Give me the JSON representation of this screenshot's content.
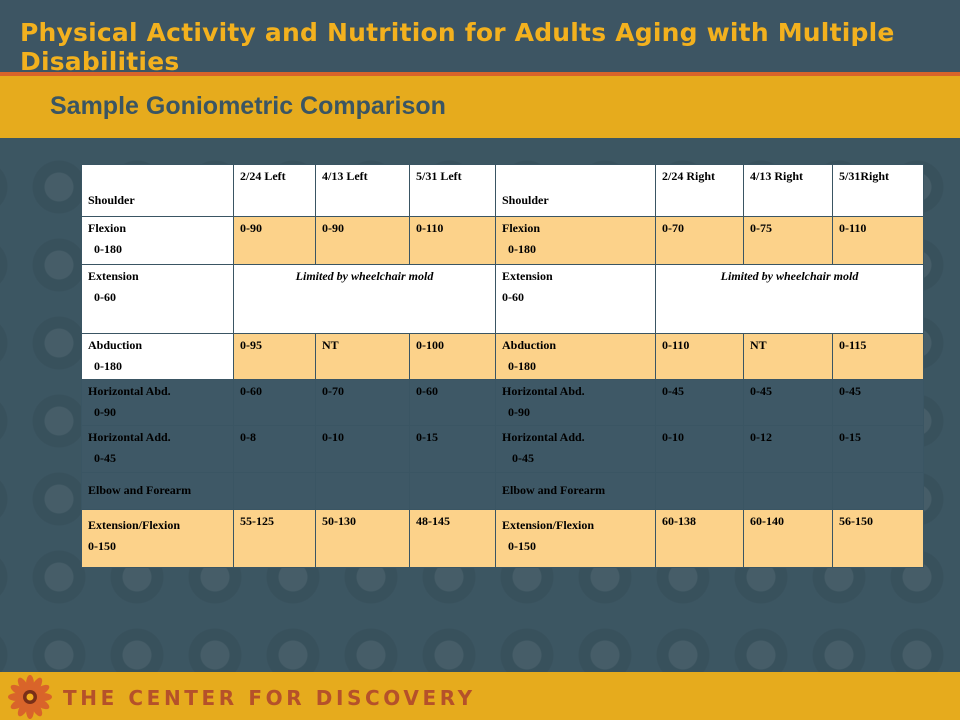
{
  "header": {
    "title": "Physical Activity and Nutrition for Adults Aging with Multiple Disabilities"
  },
  "subheader": {
    "title": "Sample Goniometric Comparison"
  },
  "footer": {
    "brand": "THE CENTER FOR DISCOVERY",
    "logo_icon": "sunflower-logo-icon"
  },
  "table": {
    "headers": {
      "left_section": "Shoulder",
      "left_cols": [
        "2/24 Left",
        "4/13 Left",
        "5/31 Left"
      ],
      "right_section": "Shoulder",
      "right_cols": [
        "2/24 Right",
        "4/13 Right",
        "5/31Right"
      ]
    },
    "rows": {
      "flexion": {
        "left_label": "Flexion",
        "left_range": "0-180",
        "left_values": [
          "0-90",
          "0-90",
          "0-110"
        ],
        "right_label": "Flexion",
        "right_range": "0-180",
        "right_values": [
          "0-70",
          "0-75",
          "0-110"
        ]
      },
      "extension": {
        "left_label": "Extension",
        "left_range": "0-60",
        "left_note": "Limited by wheelchair mold",
        "right_label": "Extension",
        "right_range": "0-60",
        "right_note": "Limited by wheelchair mold"
      },
      "abduction": {
        "left_label": "Abduction",
        "left_range": "0-180",
        "left_values": [
          "0-95",
          "NT",
          "0-100"
        ],
        "right_label": "Abduction",
        "right_range": "0-180",
        "right_values": [
          "0-110",
          "NT",
          "0-115"
        ]
      },
      "horiz_abd": {
        "left_label": "Horizontal Abd.",
        "left_range": "0-90",
        "left_values": [
          "0-60",
          "0-70",
          "0-60"
        ],
        "right_label": "Horizontal Abd.",
        "right_range": "0-90",
        "right_values": [
          "0-45",
          "0-45",
          "0-45"
        ]
      },
      "horiz_add": {
        "left_label": "Horizontal Add.",
        "left_range": "0-45",
        "left_values": [
          "0-8",
          "0-10",
          "0-15"
        ],
        "right_label": "Horizontal Add.",
        "right_range": "0-45",
        "right_values": [
          "0-10",
          "0-12",
          "0-15"
        ]
      },
      "elbow": {
        "left_label": "Elbow and Forearm",
        "right_label": "Elbow and Forearm"
      },
      "ext_flex": {
        "left_label": "Extension/Flexion",
        "left_range": "0-150",
        "left_values": [
          "55-125",
          "50-130",
          "48-145"
        ],
        "right_label": "Extension/Flexion",
        "right_range": "0-150",
        "right_values": [
          "60-138",
          "60-140",
          "56-150"
        ]
      }
    }
  },
  "colors": {
    "header_bg": "#3d5563",
    "accent": "#e6ab1d",
    "highlight_cell": "#fcd28a",
    "title_text": "#f3b11e",
    "footer_text": "#b5512a"
  }
}
